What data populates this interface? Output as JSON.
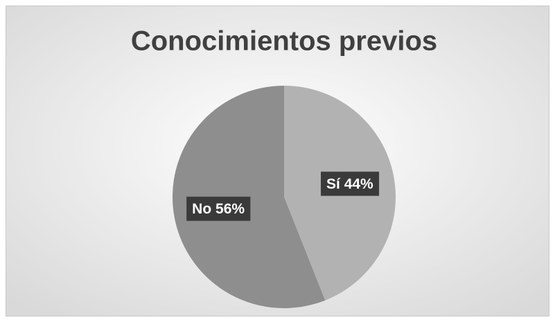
{
  "chart_data": {
    "type": "pie",
    "title": "Conocimientos previos",
    "categories": [
      "Sí",
      "No"
    ],
    "values": [
      44,
      56
    ],
    "value_labels": [
      "44%",
      "56%"
    ],
    "colors": [
      "#b2b2b2",
      "#8e8e8e"
    ]
  }
}
